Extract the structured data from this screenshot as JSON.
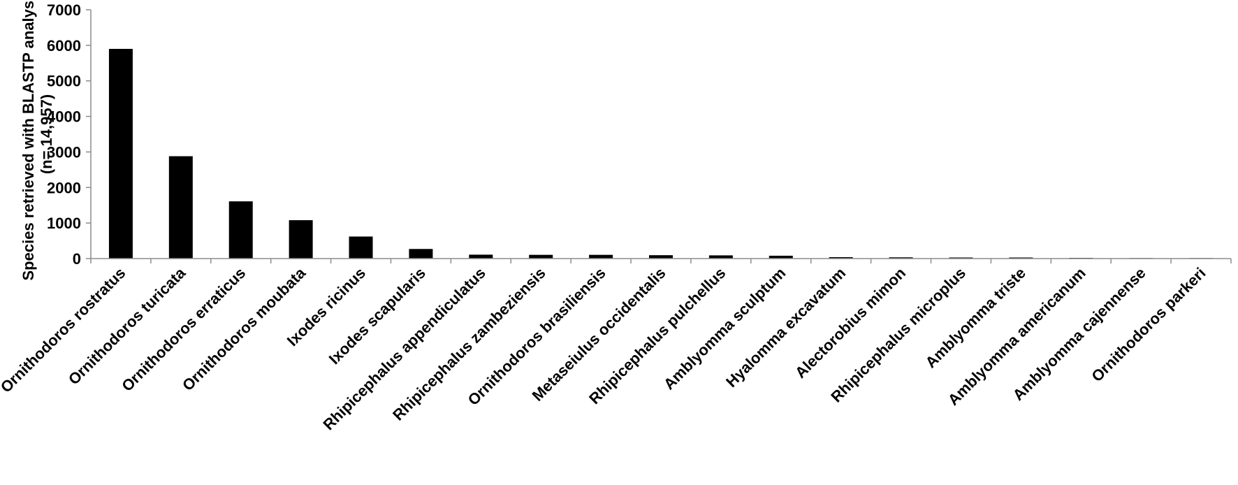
{
  "chart_data": {
    "type": "bar",
    "title": "",
    "xlabel": "",
    "ylabel_lines": [
      "Species retrieved with BLASTP analysis",
      "(n= 14,957)"
    ],
    "ylim": [
      0,
      7000
    ],
    "yticks": [
      0,
      1000,
      2000,
      3000,
      4000,
      5000,
      6000,
      7000
    ],
    "grid": false,
    "bar_color": "#000000",
    "categories": [
      "Ornithodoros rostratus",
      "Ornithodoros turicata",
      "Ornithodoros erraticus",
      "Ornithodoros moubata",
      "Ixodes ricinus",
      "Ixodes scapularis",
      "Rhipicephalus appendiculatus",
      "Rhipicephalus zambeziensis",
      "Ornithodoros brasiliensis",
      "Metaseiulus occidentalis",
      "Rhipicephalus pulchellus",
      "Amblyomma sculptum",
      "Hyalomma excavatum",
      "Alectorobius mimon",
      "Rhipicephalus microplus",
      "Amblyomma triste",
      "Amblyomma americanum",
      "Amblyomma cajennense",
      "Ornithodoros parkeri"
    ],
    "values": [
      5900,
      2880,
      1610,
      1080,
      620,
      270,
      110,
      105,
      105,
      95,
      90,
      80,
      40,
      35,
      30,
      30,
      20,
      15,
      15
    ]
  }
}
